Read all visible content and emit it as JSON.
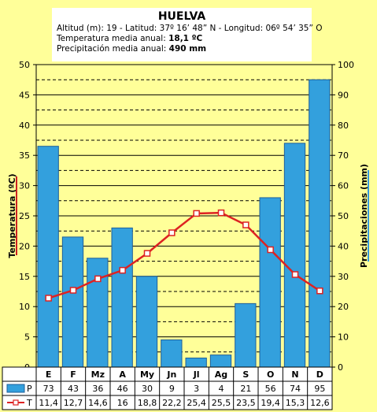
{
  "header": {
    "station": "HUELVA",
    "line1": "Altitud (m): 19 - Latitud: 37º 16’ 48” N - Longitud: 06º 54’ 35” O",
    "temp_label": "Temperatura media anual:",
    "temp_value": "18,1 ºC",
    "precip_label": "Precipitación media anual:",
    "precip_value": "490 mm"
  },
  "chart_data": {
    "type": "bar+line",
    "categories": [
      "E",
      "F",
      "Mz",
      "A",
      "My",
      "Jn",
      "Jl",
      "Ag",
      "S",
      "O",
      "N",
      "D"
    ],
    "series": [
      {
        "name": "P",
        "type": "bar",
        "axis": "right",
        "color": "#33a0dd",
        "values": [
          73,
          43,
          36,
          46,
          30,
          9,
          3,
          4,
          21,
          56,
          74,
          95
        ],
        "labels": [
          "73",
          "43",
          "36",
          "46",
          "30",
          "9",
          "3",
          "4",
          "21",
          "56",
          "74",
          "95"
        ]
      },
      {
        "name": "T",
        "type": "line",
        "axis": "left",
        "color": "#dd2222",
        "values": [
          11.4,
          12.7,
          14.6,
          16,
          18.8,
          22.2,
          25.4,
          25.5,
          23.5,
          19.4,
          15.3,
          12.6
        ],
        "labels": [
          "11,4",
          "12,7",
          "14,6",
          "16",
          "18,8",
          "22,2",
          "25,4",
          "25,5",
          "23,5",
          "19,4",
          "15,3",
          "12,6"
        ]
      }
    ],
    "y_left": {
      "label": "Temperatura (ºC)",
      "min": 0,
      "max": 50,
      "ticks": [
        0,
        5,
        10,
        15,
        20,
        25,
        30,
        35,
        40,
        45,
        50
      ],
      "accent": "#cc2222"
    },
    "y_right": {
      "label": "Precipitaciones (mm)",
      "min": 0,
      "max": 100,
      "ticks": [
        0,
        10,
        20,
        30,
        40,
        50,
        60,
        70,
        80,
        90,
        100
      ],
      "accent": "#3399dd"
    },
    "grid": true
  }
}
